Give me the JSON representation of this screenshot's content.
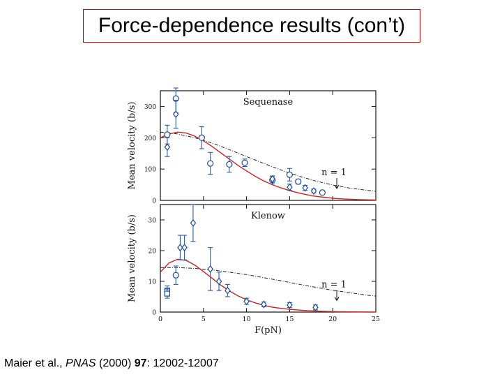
{
  "slide": {
    "title": "Force-dependence results (con’t)",
    "citation": {
      "authors": "Maier et al., ",
      "journal": "PNAS",
      "year": " (2000) ",
      "volume": "97",
      "pages": ": 12002-12007"
    }
  },
  "colors": {
    "fit_curve": "#cc2222",
    "data_markers": "#1a4aa0",
    "error_bars": "#2a5aaa",
    "dashed_curve": "#222222",
    "title_border": "#c00000"
  },
  "chart_data": [
    {
      "type": "scatter",
      "title": "Sequenase",
      "ylabel": "Mean velocity (b/s)",
      "xlabel": "",
      "xlim": [
        0,
        25
      ],
      "ylim": [
        0,
        350
      ],
      "x_ticks": [
        0,
        5,
        10,
        15,
        20,
        25
      ],
      "y_ticks": [
        0,
        100,
        200,
        300
      ],
      "annotation": "n = 1",
      "annotation_x": 19.5,
      "series": [
        {
          "marker": "circle",
          "points": [
            {
              "x": 0.8,
              "y": 210,
              "err": 30
            },
            {
              "x": 1.8,
              "y": 325,
              "err": 45
            },
            {
              "x": 4.8,
              "y": 200,
              "err": 35
            },
            {
              "x": 5.8,
              "y": 118,
              "err": 35
            },
            {
              "x": 8,
              "y": 115,
              "err": 25
            },
            {
              "x": 9.8,
              "y": 120,
              "err": 12
            },
            {
              "x": 13,
              "y": 65,
              "err": 12
            },
            {
              "x": 15,
              "y": 82,
              "err": 20
            },
            {
              "x": 16,
              "y": 60,
              "err": 8
            },
            {
              "x": 18.8,
              "y": 25,
              "err": 5
            }
          ]
        },
        {
          "marker": "diamond",
          "points": [
            {
              "x": 0.8,
              "y": 170,
              "err": 30
            },
            {
              "x": 1.8,
              "y": 275,
              "err": 45
            },
            {
              "x": 13,
              "y": 68,
              "err": 10
            },
            {
              "x": 15,
              "y": 42,
              "err": 10
            },
            {
              "x": 16.8,
              "y": 40,
              "err": 8
            },
            {
              "x": 17.8,
              "y": 30,
              "err": 6
            }
          ]
        }
      ],
      "fit_curve": {
        "x": [
          0,
          1,
          2,
          3,
          4,
          5,
          6,
          7,
          8,
          9,
          10,
          11,
          12,
          13,
          14,
          15,
          16,
          17,
          18,
          19,
          20,
          21,
          22,
          23,
          24,
          25
        ],
        "y": [
          200,
          212,
          218,
          215,
          205,
          190,
          172,
          152,
          132,
          112,
          94,
          77,
          62,
          50,
          40,
          31,
          24,
          18,
          13,
          10,
          7,
          5,
          3.5,
          2.5,
          1.8,
          1.2
        ]
      },
      "dashed_curve": {
        "x": [
          0,
          2,
          4,
          6,
          8,
          10,
          12,
          14,
          16,
          18,
          20,
          22,
          24,
          25
        ],
        "y": [
          218,
          212,
          200,
          183,
          162,
          140,
          118,
          97,
          78,
          62,
          49,
          39,
          32,
          29
        ]
      }
    },
    {
      "type": "scatter",
      "title": "Klenow",
      "ylabel": "Mean velocity (b/s)",
      "xlabel": "F(pN)",
      "xlim": [
        0,
        25
      ],
      "ylim": [
        0,
        35
      ],
      "x_ticks": [
        0,
        5,
        10,
        15,
        20,
        25
      ],
      "x_tick_labels": [
        "0",
        "5",
        "10",
        "15",
        "20",
        "25"
      ],
      "y_ticks": [
        0,
        10,
        20,
        30
      ],
      "annotation": "n = 1",
      "annotation_x": 19.5,
      "series": [
        {
          "marker": "diamond",
          "points": [
            {
              "x": 2.3,
              "y": 21,
              "err": 4
            },
            {
              "x": 2.8,
              "y": 21,
              "err": 4
            },
            {
              "x": 3.8,
              "y": 29,
              "err": 6
            },
            {
              "x": 5.8,
              "y": 14,
              "err": 7
            },
            {
              "x": 6.8,
              "y": 10,
              "err": 3
            },
            {
              "x": 7.8,
              "y": 7,
              "err": 2
            },
            {
              "x": 10,
              "y": 3.5,
              "err": 1
            },
            {
              "x": 12,
              "y": 2.5,
              "err": 0.8
            },
            {
              "x": 15,
              "y": 2.3,
              "err": 0.8
            },
            {
              "x": 18,
              "y": 1.5,
              "err": 0.8
            }
          ]
        },
        {
          "marker": "circle",
          "points": [
            {
              "x": 1.8,
              "y": 12,
              "err": 3
            }
          ]
        },
        {
          "marker": "square",
          "points": [
            {
              "x": 0.8,
              "y": 7,
              "err": 1.5
            },
            {
              "x": 0.8,
              "y": 6,
              "err": 1.5
            }
          ]
        }
      ],
      "fit_curve": {
        "x": [
          0,
          1,
          2,
          3,
          4,
          5,
          6,
          7,
          8,
          9,
          10,
          11,
          12,
          13,
          14,
          15,
          16,
          17,
          18,
          19,
          20,
          21,
          22,
          23,
          24,
          25
        ],
        "y": [
          13,
          16,
          17.2,
          16.8,
          15.3,
          13.2,
          11,
          8.8,
          6.9,
          5.3,
          4,
          3,
          2.2,
          1.6,
          1.2,
          0.9,
          0.65,
          0.45,
          0.32,
          0.22,
          0.15,
          0.1,
          0.07,
          0.05,
          0.03,
          0.02
        ]
      },
      "dashed_curve": {
        "x": [
          0,
          2,
          4,
          6,
          8,
          10,
          12,
          14,
          16,
          18,
          20,
          22,
          24,
          25
        ],
        "y": [
          14.5,
          14.5,
          14.2,
          13.7,
          13,
          12.2,
          11.2,
          10.2,
          9.1,
          8.1,
          7.1,
          6.3,
          5.5,
          5.2
        ]
      }
    }
  ]
}
